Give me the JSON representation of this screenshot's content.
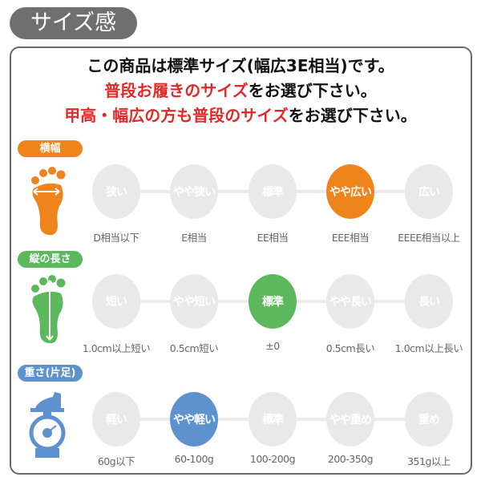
{
  "title": "サイズ感",
  "header": {
    "line1": "この商品は標準サイズ(幅広3E相当)です。",
    "line2_red": "普段お履きのサイズ",
    "line2_black": "をお選び下さい。",
    "line3_red": "甲高・幅広の方も普段のサイズ",
    "line3_black": "をお選び下さい。"
  },
  "colors": {
    "width": "#f0841c",
    "length": "#5cb85c",
    "weight": "#5e92cf",
    "inactive": "#e9e9e9",
    "red": "#e02a2a"
  },
  "rows": [
    {
      "tag": "横幅",
      "icon": "foot-width-icon",
      "color": "#f0841c",
      "selected": 3,
      "options": [
        "狭い",
        "やや狭い",
        "標準",
        "やや広い",
        "広い"
      ],
      "labels": [
        "D相当以下",
        "E相当",
        "EE相当",
        "EEE相当",
        "EEEE相当以上"
      ]
    },
    {
      "tag": "縦の長さ",
      "icon": "foot-length-icon",
      "color": "#5cb85c",
      "selected": 2,
      "options": [
        "短い",
        "やや短い",
        "標準",
        "やや長い",
        "長い"
      ],
      "labels": [
        "1.0cm以上短い",
        "0.5cm短い",
        "±0",
        "0.5cm長い",
        "1.0cm以上長い"
      ]
    },
    {
      "tag": "重さ(片足)",
      "icon": "scale-icon",
      "color": "#5e92cf",
      "selected": 1,
      "options": [
        "軽い",
        "やや軽い",
        "標準",
        "やや重め",
        "重め"
      ],
      "labels": [
        "60g以下",
        "60-100g",
        "100-200g",
        "200-350g",
        "351g以上"
      ]
    }
  ]
}
